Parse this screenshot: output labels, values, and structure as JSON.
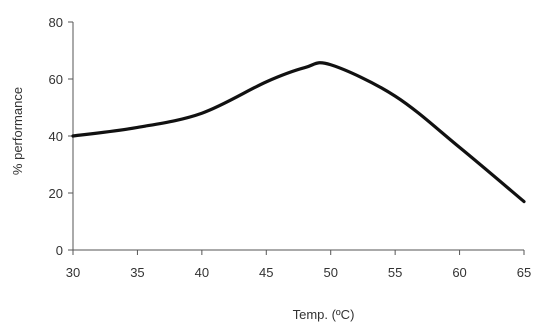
{
  "chart_data": {
    "type": "line",
    "title": "",
    "xlabel": "Temp. (ºC)",
    "ylabel": "% performance",
    "xlim": [
      30,
      65
    ],
    "ylim": [
      0,
      80
    ],
    "x_ticks": [
      "30",
      "35",
      "40",
      "45",
      "50",
      "55",
      "60",
      "65"
    ],
    "y_ticks": [
      "0",
      "20",
      "40",
      "60",
      "80"
    ],
    "grid": false,
    "legend": "none",
    "series": [
      {
        "color": "#111111",
        "points": [
          {
            "x": 30,
            "y": 40
          },
          {
            "x": 35,
            "y": 43
          },
          {
            "x": 40,
            "y": 48
          },
          {
            "x": 45,
            "y": 59
          },
          {
            "x": 48,
            "y": 64
          },
          {
            "x": 50,
            "y": 65
          },
          {
            "x": 55,
            "y": 54
          },
          {
            "x": 60,
            "y": 36
          },
          {
            "x": 65,
            "y": 17
          }
        ]
      }
    ]
  }
}
